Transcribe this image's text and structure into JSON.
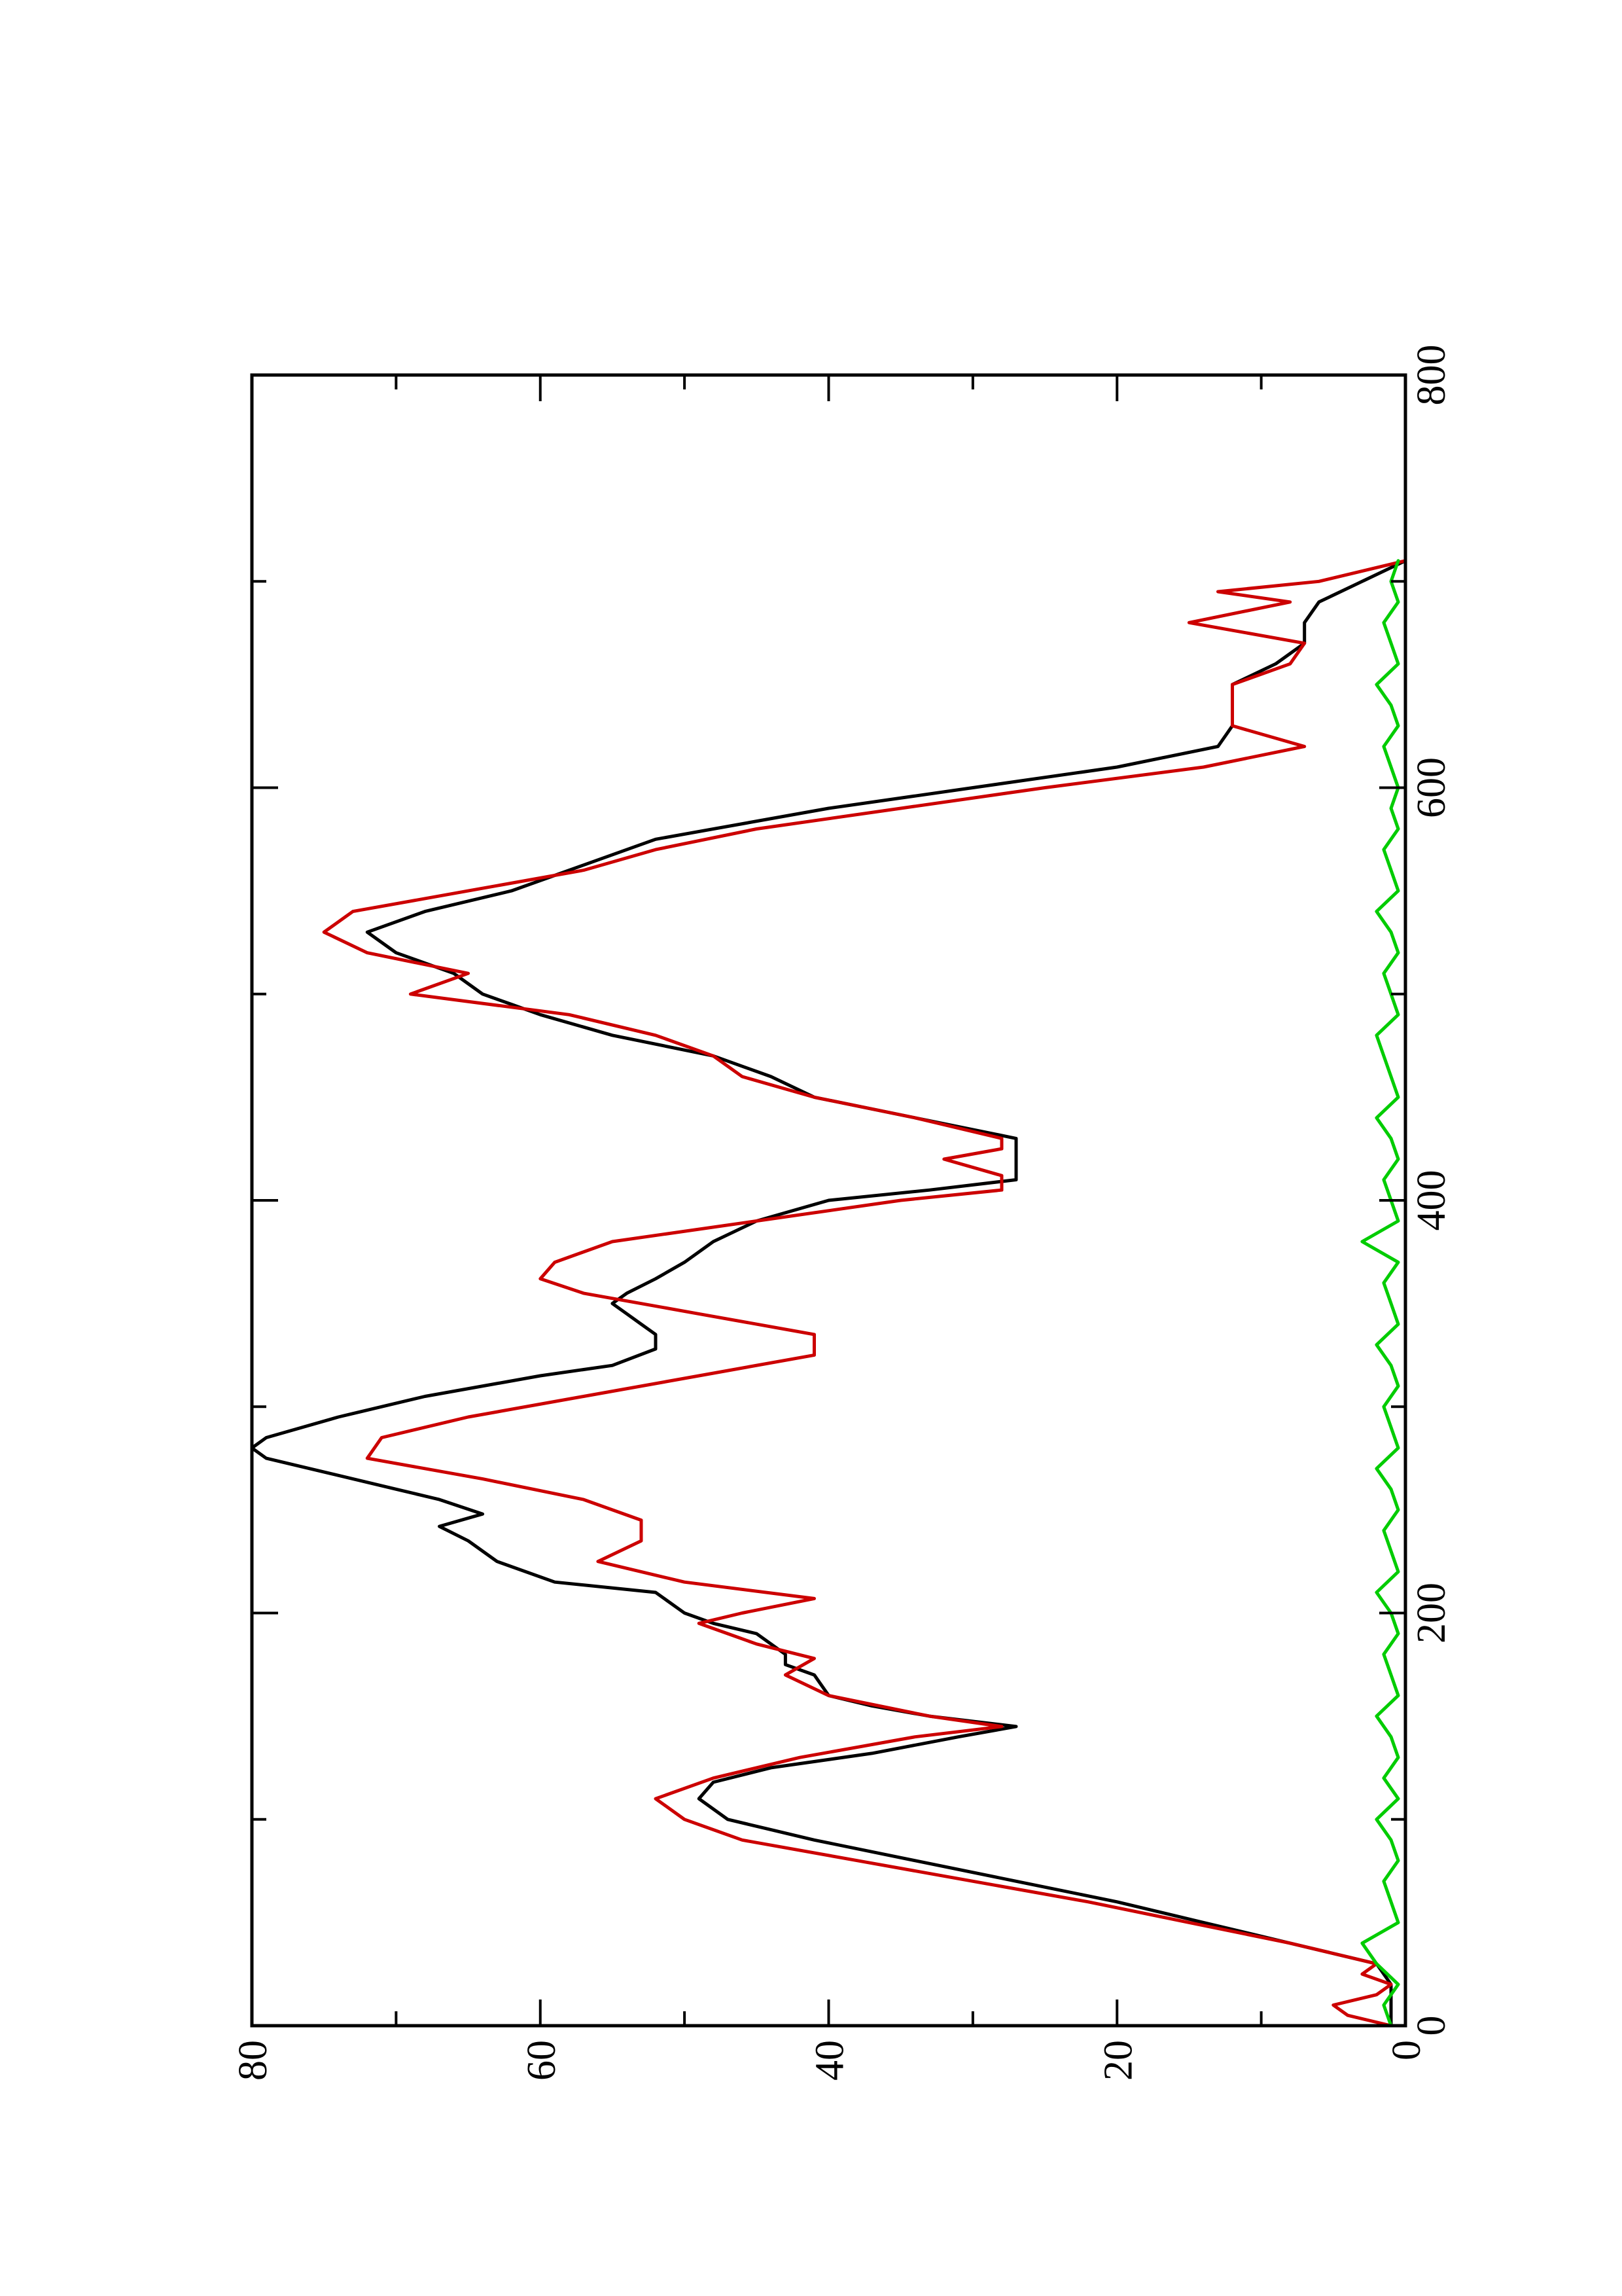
{
  "chart_data": {
    "type": "line",
    "orientation": "rotated-90",
    "title": "",
    "xlabel": "",
    "ylabel": "",
    "xlim": [
      0,
      800
    ],
    "ylim": [
      0,
      80
    ],
    "x_ticks": [
      0,
      200,
      400,
      600,
      800
    ],
    "x_tick_labels": [
      "0",
      "200",
      "400",
      "600",
      "800"
    ],
    "x_minor_ticks": [
      100,
      300,
      500,
      700
    ],
    "y_ticks": [
      0,
      20,
      40,
      60,
      80
    ],
    "y_tick_labels": [
      "0",
      "20",
      "40",
      "60",
      "80"
    ],
    "y_minor_ticks": [
      10,
      30,
      50,
      70
    ],
    "grid": false,
    "legend": "none",
    "series": [
      {
        "color": "#000000",
        "points": [
          [
            0,
            1
          ],
          [
            10,
            1
          ],
          [
            20,
            1
          ],
          [
            30,
            2
          ],
          [
            40,
            8
          ],
          [
            50,
            14
          ],
          [
            60,
            20
          ],
          [
            70,
            27
          ],
          [
            80,
            34
          ],
          [
            90,
            41
          ],
          [
            100,
            47
          ],
          [
            110,
            49
          ],
          [
            118,
            48
          ],
          [
            125,
            44
          ],
          [
            132,
            37
          ],
          [
            140,
            31
          ],
          [
            145,
            27
          ],
          [
            150,
            33
          ],
          [
            155,
            37
          ],
          [
            160,
            40
          ],
          [
            170,
            41
          ],
          [
            175,
            43
          ],
          [
            180,
            43
          ],
          [
            185,
            44
          ],
          [
            190,
            45
          ],
          [
            195,
            48
          ],
          [
            200,
            50
          ],
          [
            210,
            52
          ],
          [
            215,
            59
          ],
          [
            225,
            63
          ],
          [
            235,
            65
          ],
          [
            242,
            67
          ],
          [
            248,
            64
          ],
          [
            255,
            67
          ],
          [
            260,
            70
          ],
          [
            270,
            76
          ],
          [
            275,
            79
          ],
          [
            280,
            80
          ],
          [
            285,
            79
          ],
          [
            295,
            74
          ],
          [
            305,
            68
          ],
          [
            315,
            60
          ],
          [
            320,
            55
          ],
          [
            328,
            52
          ],
          [
            335,
            52
          ],
          [
            340,
            53
          ],
          [
            345,
            54
          ],
          [
            350,
            55
          ],
          [
            355,
            54
          ],
          [
            362,
            52
          ],
          [
            370,
            50
          ],
          [
            380,
            48
          ],
          [
            390,
            45
          ],
          [
            400,
            40
          ],
          [
            405,
            33
          ],
          [
            410,
            27
          ],
          [
            420,
            27
          ],
          [
            430,
            27
          ],
          [
            440,
            34
          ],
          [
            450,
            41
          ],
          [
            460,
            44
          ],
          [
            470,
            48
          ],
          [
            480,
            55
          ],
          [
            490,
            60
          ],
          [
            495,
            62
          ],
          [
            500,
            64
          ],
          [
            510,
            66
          ],
          [
            520,
            70
          ],
          [
            530,
            72
          ],
          [
            540,
            68
          ],
          [
            550,
            62
          ],
          [
            560,
            58
          ],
          [
            575,
            52
          ],
          [
            590,
            40
          ],
          [
            600,
            30
          ],
          [
            610,
            20
          ],
          [
            620,
            13
          ],
          [
            630,
            12
          ],
          [
            640,
            12
          ],
          [
            650,
            12
          ],
          [
            660,
            9
          ],
          [
            670,
            7
          ],
          [
            680,
            7
          ],
          [
            690,
            6
          ],
          [
            700,
            3
          ],
          [
            710,
            0
          ]
        ]
      },
      {
        "color": "#cc0000",
        "points": [
          [
            0,
            1
          ],
          [
            5,
            4
          ],
          [
            10,
            5
          ],
          [
            15,
            2
          ],
          [
            20,
            1
          ],
          [
            25,
            3
          ],
          [
            30,
            2
          ],
          [
            40,
            8
          ],
          [
            50,
            15
          ],
          [
            60,
            22
          ],
          [
            70,
            30
          ],
          [
            80,
            38
          ],
          [
            90,
            46
          ],
          [
            100,
            50
          ],
          [
            110,
            52
          ],
          [
            120,
            48
          ],
          [
            130,
            42
          ],
          [
            140,
            34
          ],
          [
            145,
            28
          ],
          [
            150,
            33
          ],
          [
            160,
            40
          ],
          [
            170,
            43
          ],
          [
            178,
            41
          ],
          [
            185,
            45
          ],
          [
            190,
            47
          ],
          [
            195,
            49
          ],
          [
            200,
            46
          ],
          [
            207,
            41
          ],
          [
            215,
            50
          ],
          [
            225,
            56
          ],
          [
            235,
            53
          ],
          [
            245,
            53
          ],
          [
            255,
            57
          ],
          [
            265,
            64
          ],
          [
            275,
            72
          ],
          [
            285,
            71
          ],
          [
            295,
            65
          ],
          [
            305,
            57
          ],
          [
            315,
            49
          ],
          [
            325,
            41
          ],
          [
            335,
            41
          ],
          [
            345,
            49
          ],
          [
            355,
            57
          ],
          [
            362,
            60
          ],
          [
            370,
            59
          ],
          [
            380,
            55
          ],
          [
            390,
            45
          ],
          [
            400,
            35
          ],
          [
            405,
            28
          ],
          [
            412,
            28
          ],
          [
            420,
            32
          ],
          [
            425,
            28
          ],
          [
            430,
            28
          ],
          [
            440,
            34
          ],
          [
            450,
            41
          ],
          [
            460,
            46
          ],
          [
            470,
            48
          ],
          [
            480,
            52
          ],
          [
            490,
            58
          ],
          [
            500,
            69
          ],
          [
            510,
            65
          ],
          [
            520,
            72
          ],
          [
            530,
            75
          ],
          [
            540,
            73
          ],
          [
            550,
            65
          ],
          [
            560,
            57
          ],
          [
            570,
            52
          ],
          [
            580,
            45
          ],
          [
            590,
            35
          ],
          [
            600,
            25
          ],
          [
            610,
            14
          ],
          [
            620,
            7
          ],
          [
            630,
            12
          ],
          [
            640,
            12
          ],
          [
            650,
            12
          ],
          [
            660,
            8
          ],
          [
            670,
            7
          ],
          [
            680,
            15
          ],
          [
            690,
            8
          ],
          [
            695,
            13
          ],
          [
            700,
            6
          ],
          [
            710,
            0
          ]
        ]
      },
      {
        "color": "#00cc00",
        "points": [
          [
            0,
            1
          ],
          [
            10,
            1.5
          ],
          [
            20,
            0.5
          ],
          [
            30,
            2
          ],
          [
            40,
            3
          ],
          [
            50,
            0.5
          ],
          [
            60,
            1
          ],
          [
            70,
            1.5
          ],
          [
            80,
            0.5
          ],
          [
            90,
            1
          ],
          [
            100,
            2
          ],
          [
            110,
            0.5
          ],
          [
            120,
            1.5
          ],
          [
            130,
            0.5
          ],
          [
            140,
            1
          ],
          [
            150,
            2
          ],
          [
            160,
            0.5
          ],
          [
            170,
            1
          ],
          [
            180,
            1.5
          ],
          [
            190,
            0.5
          ],
          [
            200,
            1
          ],
          [
            210,
            2
          ],
          [
            220,
            0.5
          ],
          [
            230,
            1
          ],
          [
            240,
            1.5
          ],
          [
            250,
            0.5
          ],
          [
            260,
            1
          ],
          [
            270,
            2
          ],
          [
            280,
            0.5
          ],
          [
            290,
            1
          ],
          [
            300,
            1.5
          ],
          [
            310,
            0.5
          ],
          [
            320,
            1
          ],
          [
            330,
            2
          ],
          [
            340,
            0.5
          ],
          [
            350,
            1
          ],
          [
            360,
            1.5
          ],
          [
            370,
            0.5
          ],
          [
            380,
            3
          ],
          [
            390,
            0.5
          ],
          [
            400,
            1
          ],
          [
            410,
            1.5
          ],
          [
            420,
            0.5
          ],
          [
            430,
            1
          ],
          [
            440,
            2
          ],
          [
            450,
            0.5
          ],
          [
            460,
            1
          ],
          [
            470,
            1.5
          ],
          [
            480,
            2
          ],
          [
            490,
            0.5
          ],
          [
            500,
            1
          ],
          [
            510,
            1.5
          ],
          [
            520,
            0.5
          ],
          [
            530,
            1
          ],
          [
            540,
            2
          ],
          [
            550,
            0.5
          ],
          [
            560,
            1
          ],
          [
            570,
            1.5
          ],
          [
            580,
            0.5
          ],
          [
            590,
            1
          ],
          [
            600,
            0.5
          ],
          [
            610,
            1
          ],
          [
            620,
            1.5
          ],
          [
            630,
            0.5
          ],
          [
            640,
            1
          ],
          [
            650,
            2
          ],
          [
            660,
            0.5
          ],
          [
            670,
            1
          ],
          [
            680,
            1.5
          ],
          [
            690,
            0.5
          ],
          [
            700,
            1
          ],
          [
            710,
            0.5
          ]
        ]
      }
    ]
  }
}
